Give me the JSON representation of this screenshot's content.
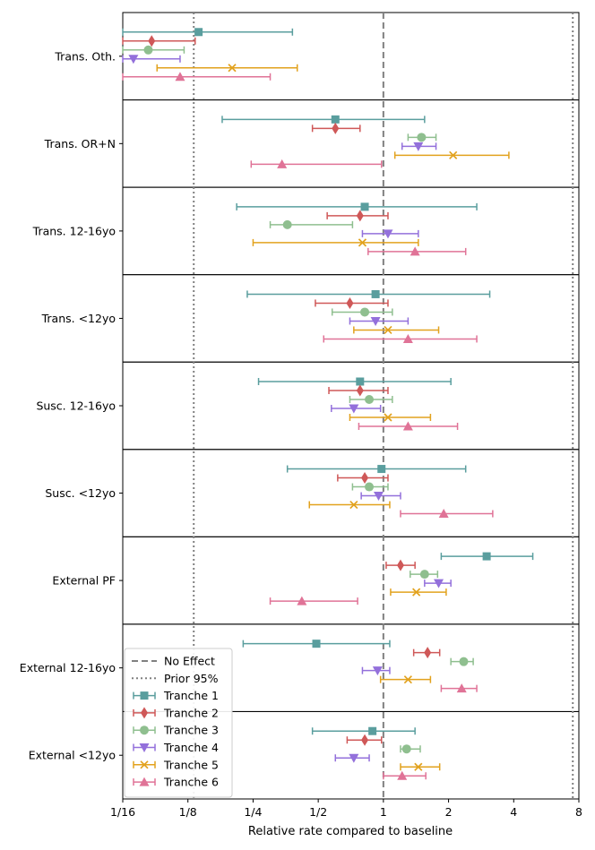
{
  "chart_data": {
    "type": "forest",
    "xlabel": "Relative rate compared to baseline",
    "xscale": "log2",
    "xlim": [
      0.0625,
      8
    ],
    "xticks": [
      {
        "v": 0.0625,
        "label": "1/16"
      },
      {
        "v": 0.125,
        "label": "1/8"
      },
      {
        "v": 0.25,
        "label": "1/4"
      },
      {
        "v": 0.5,
        "label": "1/2"
      },
      {
        "v": 1,
        "label": "1"
      },
      {
        "v": 2,
        "label": "2"
      },
      {
        "v": 4,
        "label": "4"
      },
      {
        "v": 8,
        "label": "8"
      }
    ],
    "reference_lines": [
      {
        "name": "No Effect",
        "value": 1,
        "style": "dashed",
        "color": "#808080"
      },
      {
        "name": "Prior 95%",
        "value": 0.133,
        "style": "dotted",
        "color": "#808080"
      },
      {
        "name": "Prior 95%",
        "value": 7.5,
        "style": "dotted",
        "color": "#808080"
      }
    ],
    "series": [
      {
        "name": "Tranche 1",
        "color": "#5a9e9e",
        "marker": "square"
      },
      {
        "name": "Tranche 2",
        "color": "#cf5858",
        "marker": "diamond"
      },
      {
        "name": "Tranche 3",
        "color": "#8fbf8f",
        "marker": "circle"
      },
      {
        "name": "Tranche 4",
        "color": "#9370db",
        "marker": "triangle-down"
      },
      {
        "name": "Tranche 5",
        "color": "#e2a21e",
        "marker": "x"
      },
      {
        "name": "Tranche 6",
        "color": "#e07397",
        "marker": "triangle-up"
      }
    ],
    "legend": "lower-left",
    "panels": [
      {
        "label": "Trans. Oth.",
        "estimates": [
          {
            "est": 0.14,
            "lo": 0.0625,
            "hi": 0.38
          },
          {
            "est": 0.085,
            "lo": 0.0625,
            "hi": 0.135
          },
          {
            "est": 0.082,
            "lo": 0.0625,
            "hi": 0.12
          },
          {
            "est": 0.07,
            "lo": 0.0625,
            "hi": 0.115
          },
          {
            "est": 0.2,
            "lo": 0.09,
            "hi": 0.4
          },
          {
            "est": 0.115,
            "lo": 0.0625,
            "hi": 0.3
          }
        ]
      },
      {
        "label": "Trans. OR+N",
        "estimates": [
          {
            "est": 0.6,
            "lo": 0.18,
            "hi": 1.55
          },
          {
            "est": 0.6,
            "lo": 0.47,
            "hi": 0.78
          },
          {
            "est": 1.5,
            "lo": 1.3,
            "hi": 1.75
          },
          {
            "est": 1.45,
            "lo": 1.22,
            "hi": 1.75
          },
          {
            "est": 2.1,
            "lo": 1.13,
            "hi": 3.8
          },
          {
            "est": 0.34,
            "lo": 0.245,
            "hi": 0.98
          }
        ]
      },
      {
        "label": "Trans. 12-16yo",
        "estimates": [
          {
            "est": 0.82,
            "lo": 0.21,
            "hi": 2.7
          },
          {
            "est": 0.78,
            "lo": 0.55,
            "hi": 1.05
          },
          {
            "est": 0.36,
            "lo": 0.3,
            "hi": 0.72
          },
          {
            "est": 1.05,
            "lo": 0.8,
            "hi": 1.45
          },
          {
            "est": 0.8,
            "lo": 0.25,
            "hi": 1.45
          },
          {
            "est": 1.4,
            "lo": 0.85,
            "hi": 2.4
          }
        ]
      },
      {
        "label": "Trans. <12yo",
        "estimates": [
          {
            "est": 0.92,
            "lo": 0.235,
            "hi": 3.1
          },
          {
            "est": 0.7,
            "lo": 0.485,
            "hi": 1.05
          },
          {
            "est": 0.82,
            "lo": 0.58,
            "hi": 1.1
          },
          {
            "est": 0.92,
            "lo": 0.7,
            "hi": 1.3
          },
          {
            "est": 1.05,
            "lo": 0.73,
            "hi": 1.8
          },
          {
            "est": 1.3,
            "lo": 0.53,
            "hi": 2.7
          }
        ]
      },
      {
        "label": "Susc. 12-16yo",
        "estimates": [
          {
            "est": 0.78,
            "lo": 0.265,
            "hi": 2.05
          },
          {
            "est": 0.78,
            "lo": 0.56,
            "hi": 1.05
          },
          {
            "est": 0.86,
            "lo": 0.7,
            "hi": 1.1
          },
          {
            "est": 0.73,
            "lo": 0.575,
            "hi": 0.97
          },
          {
            "est": 1.05,
            "lo": 0.7,
            "hi": 1.65
          },
          {
            "est": 1.3,
            "lo": 0.77,
            "hi": 2.2
          }
        ]
      },
      {
        "label": "Susc. <12yo",
        "estimates": [
          {
            "est": 0.98,
            "lo": 0.36,
            "hi": 2.4
          },
          {
            "est": 0.82,
            "lo": 0.615,
            "hi": 1.05
          },
          {
            "est": 0.86,
            "lo": 0.72,
            "hi": 1.05
          },
          {
            "est": 0.95,
            "lo": 0.79,
            "hi": 1.2
          },
          {
            "est": 0.73,
            "lo": 0.455,
            "hi": 1.07
          },
          {
            "est": 1.9,
            "lo": 1.2,
            "hi": 3.2
          }
        ]
      },
      {
        "label": "External PF",
        "estimates": [
          {
            "est": 3.0,
            "lo": 1.85,
            "hi": 4.9
          },
          {
            "est": 1.2,
            "lo": 1.03,
            "hi": 1.4
          },
          {
            "est": 1.55,
            "lo": 1.33,
            "hi": 1.78
          },
          {
            "est": 1.8,
            "lo": 1.55,
            "hi": 2.05
          },
          {
            "est": 1.42,
            "lo": 1.08,
            "hi": 1.95
          },
          {
            "est": 0.42,
            "lo": 0.3,
            "hi": 0.76
          }
        ]
      },
      {
        "label": "External 12-16yo",
        "estimates": [
          {
            "est": 0.49,
            "lo": 0.225,
            "hi": 1.07
          },
          {
            "est": 1.6,
            "lo": 1.38,
            "hi": 1.82
          },
          {
            "est": 2.35,
            "lo": 2.05,
            "hi": 2.6
          },
          {
            "est": 0.94,
            "lo": 0.8,
            "hi": 1.07
          },
          {
            "est": 1.3,
            "lo": 0.97,
            "hi": 1.65
          },
          {
            "est": 2.3,
            "lo": 1.85,
            "hi": 2.7
          }
        ]
      },
      {
        "label": "External <12yo",
        "estimates": [
          {
            "est": 0.89,
            "lo": 0.47,
            "hi": 1.4
          },
          {
            "est": 0.82,
            "lo": 0.68,
            "hi": 0.98
          },
          {
            "est": 1.28,
            "lo": 1.2,
            "hi": 1.48
          },
          {
            "est": 0.73,
            "lo": 0.6,
            "hi": 0.86
          },
          {
            "est": 1.45,
            "lo": 1.2,
            "hi": 1.82
          },
          {
            "est": 1.22,
            "lo": 1.0,
            "hi": 1.57
          }
        ]
      }
    ]
  }
}
